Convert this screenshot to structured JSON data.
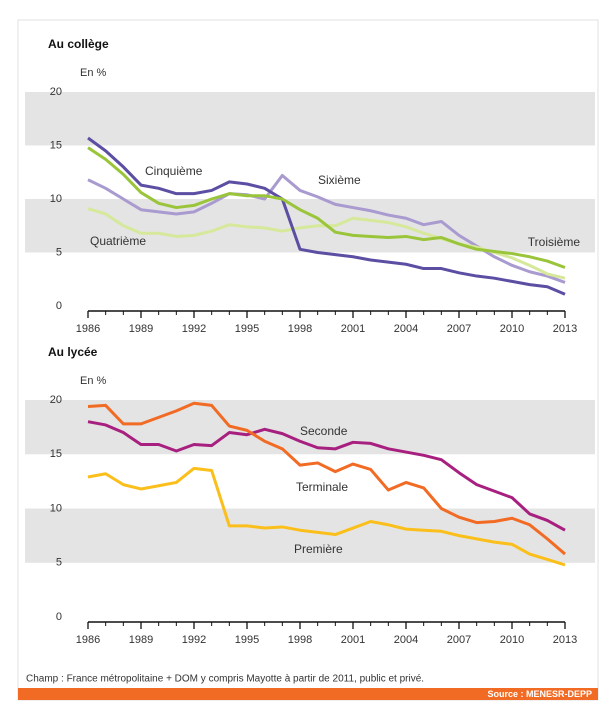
{
  "chart_data": [
    {
      "type": "line",
      "title": "Au collège",
      "y_label": "En %",
      "x": [
        1986,
        1987,
        1988,
        1989,
        1990,
        1991,
        1992,
        1993,
        1994,
        1995,
        1996,
        1997,
        1998,
        1999,
        2000,
        2001,
        2002,
        2003,
        2004,
        2005,
        2006,
        2007,
        2008,
        2009,
        2010,
        2011,
        2012,
        2013
      ],
      "xlim": [
        1986,
        2013
      ],
      "xticks": [
        1986,
        1989,
        1992,
        1995,
        1998,
        2001,
        2004,
        2007,
        2010,
        2013
      ],
      "ylim": [
        0,
        20
      ],
      "yticks": [
        0,
        5,
        10,
        15,
        20
      ],
      "series": [
        {
          "name": "Sixième",
          "color": "#a99ad0",
          "values": [
            11.8,
            11,
            10,
            9,
            8.8,
            8.6,
            8.8,
            9.6,
            10.5,
            10.4,
            10,
            12.2,
            10.8,
            10.2,
            9.5,
            9.2,
            8.9,
            8.5,
            8.2,
            7.6,
            7.9,
            6.6,
            5.6,
            4.6,
            3.8,
            3.2,
            2.8,
            2.2
          ]
        },
        {
          "name": "Quatrième",
          "color": "#d6e89a",
          "values": [
            9.1,
            8.6,
            7.5,
            6.8,
            6.8,
            6.5,
            6.6,
            7,
            7.6,
            7.4,
            7.3,
            7,
            7.3,
            7.5,
            7.5,
            8.2,
            8,
            7.8,
            7.4,
            6.8,
            6.3,
            5.8,
            5.5,
            5,
            4.5,
            3.8,
            3,
            2.6
          ]
        },
        {
          "name": "Cinquième",
          "color": "#5b4ea3",
          "values": [
            15.7,
            14.5,
            13,
            11.3,
            11,
            10.5,
            10.5,
            10.8,
            11.6,
            11.4,
            11,
            10,
            5.3,
            5,
            4.8,
            4.6,
            4.3,
            4.1,
            3.9,
            3.5,
            3.5,
            3.1,
            2.8,
            2.6,
            2.3,
            2,
            1.8,
            1.1
          ]
        },
        {
          "name": "Troisième",
          "color": "#9ac53a",
          "values": [
            14.8,
            13.7,
            12.3,
            10.6,
            9.6,
            9.2,
            9.4,
            10,
            10.5,
            10.3,
            10.3,
            10,
            9,
            8.2,
            6.9,
            6.6,
            6.5,
            6.4,
            6.5,
            6.2,
            6.4,
            5.8,
            5.3,
            5.1,
            4.9,
            4.6,
            4.2,
            3.6
          ]
        }
      ]
    },
    {
      "type": "line",
      "title": "Au lycée",
      "y_label": "En %",
      "x": [
        1986,
        1987,
        1988,
        1989,
        1990,
        1991,
        1992,
        1993,
        1994,
        1995,
        1996,
        1997,
        1998,
        1999,
        2000,
        2001,
        2002,
        2003,
        2004,
        2005,
        2006,
        2007,
        2008,
        2009,
        2010,
        2011,
        2012,
        2013
      ],
      "xlim": [
        1986,
        2013
      ],
      "xticks": [
        1986,
        1989,
        1992,
        1995,
        1998,
        2001,
        2004,
        2007,
        2010,
        2013
      ],
      "ylim": [
        0,
        20
      ],
      "yticks": [
        0,
        5,
        10,
        15,
        20
      ],
      "series": [
        {
          "name": "Première",
          "color": "#fbbf1c",
          "values": [
            12.9,
            13.2,
            12.2,
            11.8,
            12.1,
            12.4,
            13.7,
            13.5,
            8.4,
            8.4,
            8.2,
            8.3,
            8,
            7.8,
            7.6,
            8.2,
            8.8,
            8.5,
            8.1,
            8,
            7.9,
            7.5,
            7.2,
            6.9,
            6.7,
            5.8,
            5.3,
            4.8
          ]
        },
        {
          "name": "Seconde",
          "color": "#a8207f",
          "values": [
            18,
            17.7,
            17,
            15.9,
            15.9,
            15.3,
            15.9,
            15.8,
            17,
            16.8,
            17.3,
            16.9,
            16.2,
            15.6,
            15.5,
            16.1,
            16,
            15.5,
            15.2,
            14.9,
            14.5,
            13.3,
            12.2,
            11.6,
            11,
            9.5,
            8.9,
            8
          ]
        },
        {
          "name": "Terminale",
          "color": "#f26b24",
          "values": [
            19.4,
            19.5,
            17.8,
            17.8,
            18.4,
            19,
            19.7,
            19.5,
            17.6,
            17.2,
            16.2,
            15.5,
            14,
            14.2,
            13.4,
            14.1,
            13.6,
            11.7,
            12.4,
            11.9,
            10,
            9.2,
            8.7,
            8.8,
            9.1,
            8.5,
            7.2,
            5.8
          ]
        }
      ]
    }
  ],
  "footer": {
    "note": "Champ : France métropolitaine + DOM y compris Mayotte à partir de 2011, public et privé.",
    "source": "Source : MENESR-DEPP"
  }
}
